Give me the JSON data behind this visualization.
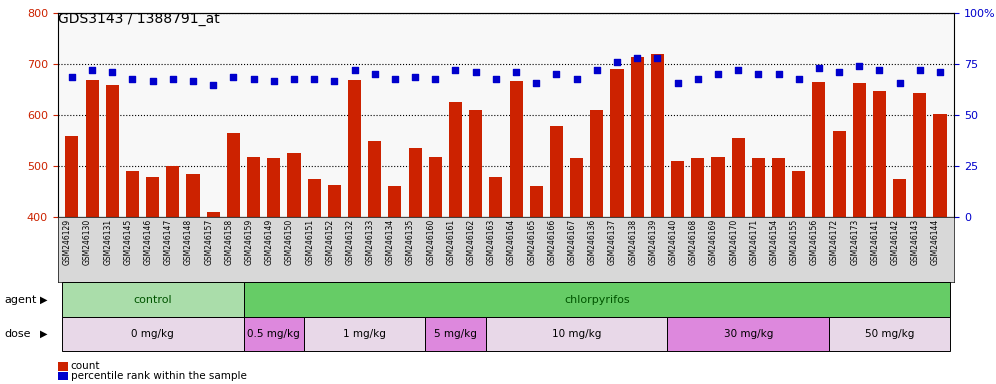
{
  "title": "GDS3143 / 1388791_at",
  "samples": [
    "GSM246129",
    "GSM246130",
    "GSM246131",
    "GSM246145",
    "GSM246146",
    "GSM246147",
    "GSM246148",
    "GSM246157",
    "GSM246158",
    "GSM246159",
    "GSM246149",
    "GSM246150",
    "GSM246151",
    "GSM246152",
    "GSM246132",
    "GSM246133",
    "GSM246134",
    "GSM246135",
    "GSM246160",
    "GSM246161",
    "GSM246162",
    "GSM246163",
    "GSM246164",
    "GSM246165",
    "GSM246166",
    "GSM246167",
    "GSM246136",
    "GSM246137",
    "GSM246138",
    "GSM246139",
    "GSM246140",
    "GSM246168",
    "GSM246169",
    "GSM246170",
    "GSM246171",
    "GSM246154",
    "GSM246155",
    "GSM246156",
    "GSM246172",
    "GSM246173",
    "GSM246141",
    "GSM246142",
    "GSM246143",
    "GSM246144"
  ],
  "counts": [
    560,
    670,
    660,
    490,
    478,
    500,
    485,
    410,
    565,
    518,
    515,
    525,
    475,
    462,
    670,
    550,
    460,
    535,
    518,
    625,
    610,
    478,
    668,
    460,
    578,
    515,
    610,
    690,
    715,
    720,
    510,
    515,
    518,
    555,
    515,
    515,
    490,
    665,
    568,
    663,
    648,
    475,
    643,
    603
  ],
  "percentile_ranks": [
    69,
    72,
    71,
    68,
    67,
    68,
    67,
    65,
    69,
    68,
    67,
    68,
    68,
    67,
    72,
    70,
    68,
    69,
    68,
    72,
    71,
    68,
    71,
    66,
    70,
    68,
    72,
    76,
    78,
    78,
    66,
    68,
    70,
    72,
    70,
    70,
    68,
    73,
    71,
    74,
    72,
    66,
    72,
    71
  ],
  "ylim_left": [
    400,
    800
  ],
  "ylim_right": [
    0,
    100
  ],
  "yticks_left": [
    400,
    500,
    600,
    700,
    800
  ],
  "yticks_right": [
    0,
    25,
    50,
    75,
    100
  ],
  "bar_color": "#cc2200",
  "dot_color": "#0000cc",
  "agent_groups": [
    {
      "label": "control",
      "start": 0,
      "end": 9,
      "color": "#aaddaa"
    },
    {
      "label": "chlorpyrifos",
      "start": 9,
      "end": 44,
      "color": "#66cc66"
    }
  ],
  "dose_groups": [
    {
      "label": "0 mg/kg",
      "start": 0,
      "end": 9,
      "color": "#e8d8e8"
    },
    {
      "label": "0.5 mg/kg",
      "start": 9,
      "end": 12,
      "color": "#dd88dd"
    },
    {
      "label": "1 mg/kg",
      "start": 12,
      "end": 18,
      "color": "#e8d8e8"
    },
    {
      "label": "5 mg/kg",
      "start": 18,
      "end": 21,
      "color": "#dd88dd"
    },
    {
      "label": "10 mg/kg",
      "start": 21,
      "end": 30,
      "color": "#e8d8e8"
    },
    {
      "label": "30 mg/kg",
      "start": 30,
      "end": 38,
      "color": "#dd88dd"
    },
    {
      "label": "50 mg/kg",
      "start": 38,
      "end": 44,
      "color": "#e8d8e8"
    }
  ]
}
